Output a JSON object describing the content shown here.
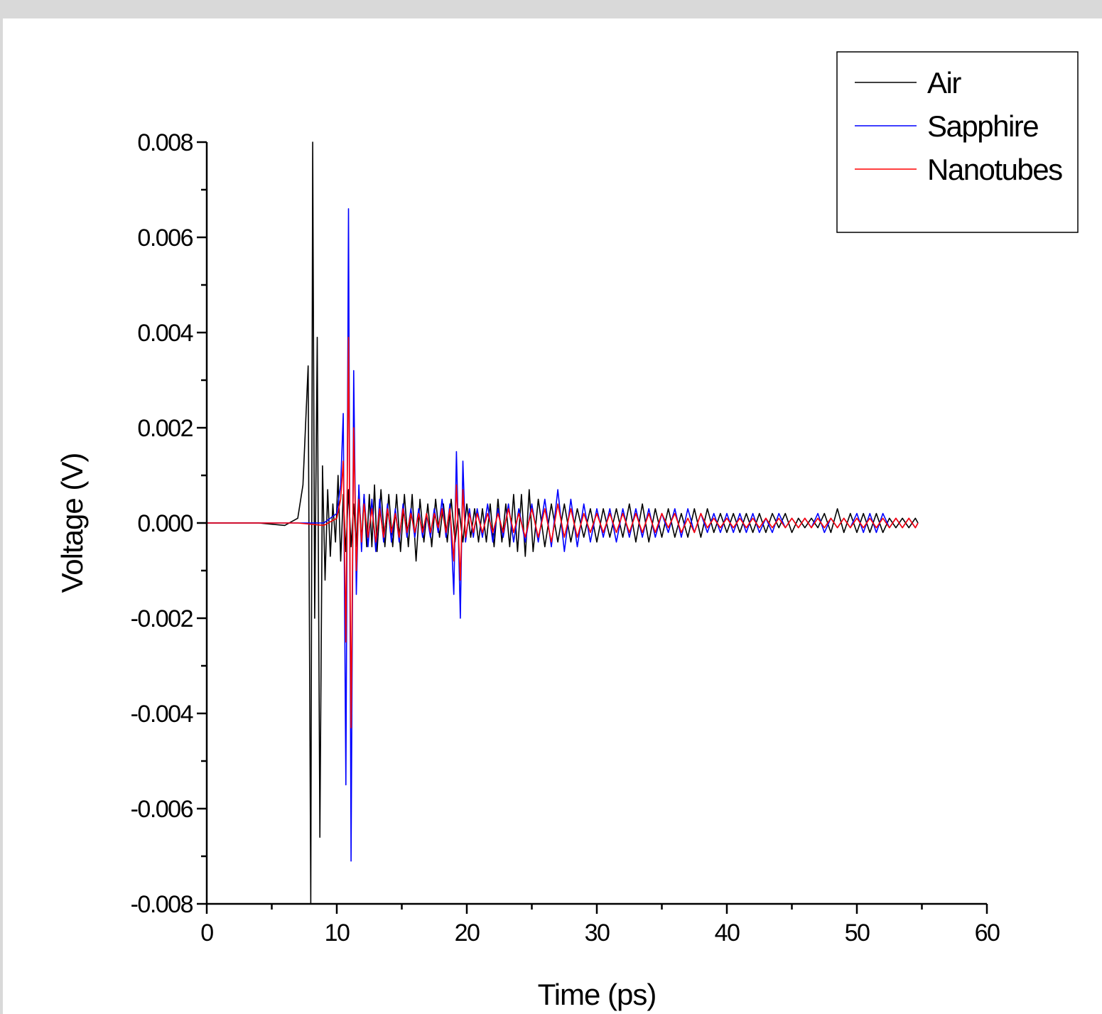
{
  "chart_data": {
    "type": "line",
    "xlabel": "Time (ps)",
    "ylabel": "Voltage (V)",
    "xlim": [
      0,
      60
    ],
    "ylim": [
      -0.008,
      0.008
    ],
    "xticks": [
      "0",
      "10",
      "20",
      "30",
      "40",
      "50",
      "60"
    ],
    "yticks": [
      "-0.008",
      "-0.006",
      "-0.004",
      "-0.002",
      "0.000",
      "0.002",
      "0.004",
      "0.006",
      "0.008"
    ],
    "legend_position": "top-right",
    "grid": false,
    "series": [
      {
        "name": "Air",
        "color": "#000000",
        "x": [
          0,
          2,
          4,
          6,
          7,
          7.4,
          7.8,
          8.0,
          8.15,
          8.3,
          8.5,
          8.7,
          8.9,
          9.1,
          9.3,
          9.5,
          9.7,
          9.9,
          10.1,
          10.3,
          10.5,
          10.7,
          10.9,
          11.1,
          11.3,
          11.5,
          11.7,
          11.9,
          12.1,
          12.3,
          12.5,
          12.7,
          12.9,
          13.1,
          13.4,
          13.7,
          14.0,
          14.3,
          14.6,
          14.9,
          15.2,
          15.5,
          15.8,
          16.1,
          16.4,
          16.7,
          17.0,
          17.3,
          17.6,
          17.9,
          18.2,
          18.5,
          18.8,
          19.1,
          19.4,
          19.7,
          20.0,
          20.3,
          20.6,
          20.9,
          21.2,
          21.5,
          21.8,
          22.1,
          22.4,
          22.7,
          23.0,
          23.3,
          23.6,
          23.9,
          24.2,
          24.5,
          24.8,
          25.1,
          25.5,
          26.0,
          26.5,
          27.0,
          27.5,
          28.0,
          28.5,
          29.0,
          29.5,
          30.0,
          30.5,
          31.0,
          31.5,
          32.0,
          32.5,
          33.0,
          33.5,
          34.0,
          34.5,
          35.0,
          35.5,
          36.0,
          36.5,
          37.0,
          37.5,
          38.0,
          38.5,
          39.0,
          39.5,
          40.0,
          40.5,
          41.0,
          41.5,
          42.0,
          42.5,
          43.0,
          43.5,
          44.0,
          44.5,
          45.0,
          45.5,
          46.0,
          46.5,
          47.0,
          47.5,
          48.0,
          48.5,
          49.0,
          49.5,
          50.0,
          50.5,
          51.0,
          51.5,
          52.0,
          52.5,
          53.0,
          53.5,
          54.0,
          54.5,
          54.7
        ],
        "y": [
          0,
          0,
          0,
          -5e-05,
          0.0001,
          0.0008,
          0.0033,
          -0.008,
          0.008,
          -0.002,
          0.0039,
          -0.0066,
          0.0012,
          -0.0012,
          0.0007,
          -0.0007,
          0.0004,
          -0.0004,
          0.001,
          -0.0008,
          0.0006,
          -0.0006,
          0.0007,
          -0.0005,
          0.0004,
          -0.0005,
          0.0007,
          -0.0004,
          0.0006,
          -0.0005,
          0.0006,
          -0.0005,
          0.0008,
          -0.0006,
          0.0007,
          -0.0005,
          0.0006,
          -0.0005,
          0.0006,
          -0.0006,
          0.0006,
          -0.0005,
          0.0006,
          -0.0008,
          0.0005,
          -0.0004,
          0.0004,
          -0.0005,
          0.0005,
          -0.0003,
          0.0004,
          -0.0004,
          0.0005,
          -0.0004,
          0.0003,
          -0.0004,
          0.0004,
          -0.0003,
          0.0003,
          -0.0004,
          0.0003,
          -0.0004,
          0.0004,
          -0.0005,
          0.0005,
          -0.0004,
          0.0004,
          -0.0005,
          0.0006,
          -0.0006,
          0.0006,
          -0.0007,
          0.0007,
          -0.0006,
          0.0005,
          -0.0005,
          0.0004,
          -0.0004,
          0.0004,
          -0.0004,
          0.0003,
          -0.0003,
          0.0003,
          -0.0004,
          0.0003,
          -0.0003,
          0.0003,
          -0.0003,
          0.0004,
          -0.0004,
          0.0004,
          -0.0004,
          0.0003,
          -0.0003,
          0.0003,
          -0.0003,
          0.0002,
          -0.0003,
          0.0003,
          -0.0003,
          0.0003,
          -0.0002,
          0.0002,
          -0.0002,
          0.0002,
          -0.0002,
          0.0002,
          -0.0002,
          0.0002,
          -0.0002,
          0.0002,
          -0.0001,
          0.0002,
          -0.0002,
          0.0001,
          -0.0001,
          0.0001,
          -0.0001,
          0.0002,
          -0.0002,
          0.0003,
          -0.0002,
          0.0002,
          -0.0002,
          0.0002,
          -0.0002,
          0.0002,
          -0.0002,
          0.0001,
          -0.0001,
          0.0001,
          -0.0001,
          0.0001,
          0.0
        ]
      },
      {
        "name": "Sapphire",
        "color": "#0000ff",
        "x": [
          0,
          5,
          9,
          10.0,
          10.3,
          10.5,
          10.7,
          10.9,
          11.1,
          11.3,
          11.5,
          11.7,
          11.9,
          12.1,
          12.4,
          12.7,
          13.0,
          13.3,
          13.6,
          13.9,
          14.2,
          14.5,
          14.8,
          15.1,
          15.4,
          15.7,
          16.0,
          16.3,
          16.6,
          16.9,
          17.2,
          17.5,
          17.8,
          18.1,
          18.4,
          18.7,
          19.0,
          19.2,
          19.5,
          19.7,
          19.9,
          20.2,
          20.5,
          20.8,
          21.2,
          21.6,
          22.0,
          22.4,
          22.8,
          23.2,
          23.6,
          24.0,
          24.5,
          25.0,
          25.5,
          26.0,
          26.5,
          27.0,
          27.5,
          28.0,
          28.5,
          29.0,
          29.5,
          30.0,
          30.5,
          31.0,
          31.5,
          32.0,
          32.5,
          33.0,
          33.5,
          34.0,
          34.5,
          35.0,
          35.5,
          36.0,
          36.5,
          37.0,
          37.5,
          38.0,
          38.5,
          39.0,
          39.5,
          40.0,
          40.5,
          41.0,
          41.5,
          42.0,
          42.5,
          43.0,
          43.5,
          44.0,
          44.5,
          45.0,
          45.5,
          46.0,
          46.5,
          47.0,
          47.5,
          48.0,
          48.5,
          49.0,
          49.5,
          50.0,
          50.5,
          51.0,
          51.5,
          52.0,
          52.5,
          53.0,
          53.5,
          54.0,
          54.5,
          54.7
        ],
        "y": [
          0,
          0,
          0,
          0.0002,
          0.0008,
          0.0023,
          -0.0055,
          0.0066,
          -0.0071,
          0.0032,
          -0.0015,
          0.0008,
          -0.0006,
          0.0006,
          -0.0005,
          0.0005,
          -0.0006,
          0.0005,
          -0.0004,
          0.0004,
          -0.0004,
          0.0003,
          -0.0004,
          0.0004,
          -0.0003,
          0.0003,
          -0.0003,
          0.0003,
          -0.0003,
          0.0002,
          -0.0003,
          0.0003,
          -0.0002,
          0.0005,
          -0.0003,
          0.0004,
          -0.0015,
          0.0015,
          -0.002,
          0.0013,
          -0.0004,
          0.0003,
          -0.0003,
          0.0003,
          -0.0003,
          0.0004,
          -0.0004,
          0.0003,
          -0.0003,
          0.0004,
          -0.0004,
          0.0003,
          -0.0004,
          0.0004,
          -0.0004,
          0.0005,
          -0.0005,
          0.0007,
          -0.0006,
          0.0005,
          -0.0005,
          0.0004,
          -0.0004,
          0.0003,
          -0.0003,
          0.0003,
          -0.0004,
          0.0003,
          -0.0003,
          0.0003,
          -0.0003,
          0.0003,
          -0.0003,
          0.0002,
          -0.0002,
          0.0003,
          -0.0003,
          0.0003,
          -0.0002,
          0.0002,
          -0.0002,
          0.0002,
          -0.0002,
          0.0002,
          -0.0002,
          0.0002,
          -0.0002,
          0.0002,
          -0.0002,
          0.0001,
          -0.0002,
          0.0002,
          -0.0001,
          0.0001,
          -0.0001,
          0.0001,
          -0.0001,
          0.0002,
          -0.0002,
          0.0001,
          -0.0001,
          0.0001,
          -0.0001,
          0.0002,
          -0.0002,
          0.0002,
          -0.0002,
          0.0002,
          -0.0001,
          0.0001,
          -0.0001,
          0.0001,
          -0.0001,
          0.0
        ]
      },
      {
        "name": "Nanotubes",
        "color": "#ff0000",
        "x": [
          0,
          5,
          7,
          9,
          10.0,
          10.3,
          10.5,
          10.7,
          10.9,
          11.1,
          11.3,
          11.5,
          11.7,
          11.9,
          12.1,
          12.4,
          12.7,
          13.0,
          13.3,
          13.6,
          13.9,
          14.2,
          14.5,
          14.8,
          15.1,
          15.4,
          15.7,
          16.0,
          16.3,
          16.6,
          16.9,
          17.2,
          17.5,
          17.8,
          18.1,
          18.4,
          18.7,
          19.0,
          19.2,
          19.5,
          19.7,
          19.9,
          20.2,
          20.5,
          20.8,
          21.2,
          21.6,
          22.0,
          22.4,
          22.8,
          23.2,
          23.6,
          24.0,
          24.5,
          25.0,
          25.5,
          26.0,
          26.5,
          27.0,
          27.5,
          28.0,
          28.5,
          29.0,
          29.5,
          30.0,
          30.5,
          31.0,
          31.5,
          32.0,
          32.5,
          33.0,
          33.5,
          34.0,
          34.5,
          35.0,
          35.5,
          36.0,
          36.5,
          37.0,
          37.5,
          38.0,
          38.5,
          39.0,
          39.5,
          40.0,
          40.5,
          41.0,
          41.5,
          42.0,
          42.5,
          43.0,
          43.5,
          44.0,
          44.5,
          45.0,
          45.5,
          46.0,
          46.5,
          47.0,
          47.5,
          48.0,
          48.5,
          49.0,
          49.5,
          50.0,
          50.5,
          51.0,
          51.5,
          52.0,
          52.5,
          53.0,
          53.5,
          54.0,
          54.5,
          54.7
        ],
        "y": [
          0,
          0,
          0,
          -5e-05,
          0.0001,
          0.0005,
          0.0013,
          -0.0025,
          0.0039,
          -0.0043,
          0.002,
          -0.001,
          0.0005,
          -0.0004,
          0.0004,
          -0.0003,
          0.0003,
          -0.0004,
          0.0003,
          -0.0003,
          0.0003,
          -0.0002,
          0.0002,
          -0.0003,
          0.0003,
          -0.0002,
          0.0002,
          -0.0002,
          0.0002,
          -0.0002,
          0.0002,
          -0.0002,
          0.0002,
          -0.0001,
          0.0003,
          -0.0002,
          0.0003,
          -0.0008,
          0.0008,
          -0.0012,
          0.0007,
          -0.0003,
          0.0002,
          -0.0002,
          0.0002,
          -0.0002,
          0.0002,
          -0.0002,
          0.0002,
          -0.0002,
          0.0003,
          -0.0002,
          0.0002,
          -0.0003,
          0.0003,
          -0.0003,
          0.0003,
          -0.0004,
          0.0004,
          -0.0003,
          0.0003,
          -0.0003,
          0.0002,
          -0.0002,
          0.0002,
          -0.0002,
          0.0002,
          -0.0002,
          0.0002,
          -0.0002,
          0.0002,
          -0.0002,
          0.0002,
          -0.0002,
          0.0002,
          -0.0001,
          0.0002,
          -0.0002,
          0.0001,
          -0.0002,
          0.0002,
          -0.0001,
          0.0001,
          -0.0001,
          0.0001,
          -0.0001,
          0.0001,
          -0.0001,
          0.0001,
          -0.0001,
          0.0001,
          -0.0001,
          0.0001,
          -0.0001,
          0.0001,
          -0.0001,
          0.0001,
          -0.0001,
          0.0001,
          -0.0001,
          0.0001,
          -0.0001,
          0.0001,
          -0.0001,
          0.0001,
          -0.0001,
          0.0001,
          -0.0001,
          0.0001,
          -0.0001,
          0.0001,
          -0.0001,
          0.0001,
          -0.0001,
          0.0
        ]
      }
    ]
  }
}
